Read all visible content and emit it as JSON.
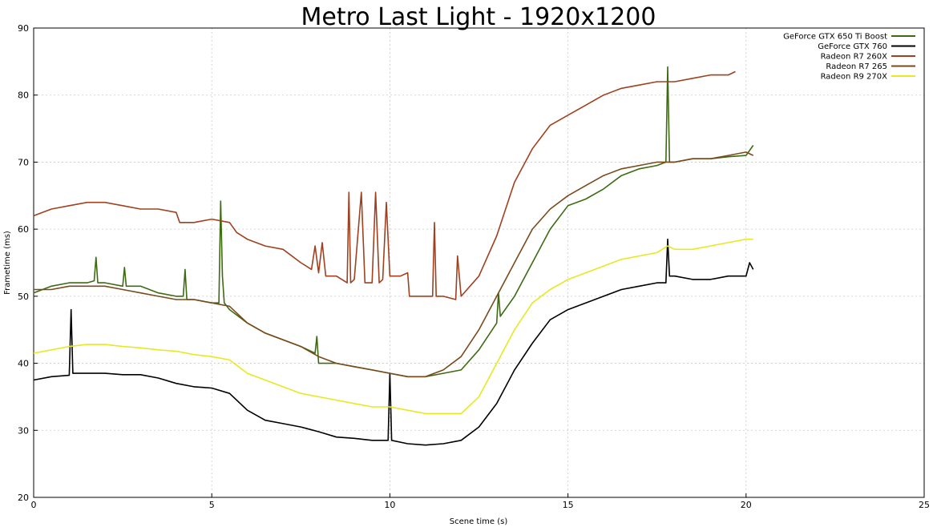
{
  "chart_data": {
    "type": "line",
    "title": "Metro Last Light - 1920x1200",
    "xlabel": "Scene time (s)",
    "ylabel": "Frametime (ms)",
    "xlim": [
      0,
      25
    ],
    "ylim": [
      20,
      90
    ],
    "xticks": [
      0,
      5,
      10,
      15,
      20,
      25
    ],
    "yticks": [
      20,
      30,
      40,
      50,
      60,
      70,
      80,
      90
    ],
    "grid": true,
    "legend_position": "top-right",
    "series": [
      {
        "name": "GeForce GTX 650 Ti Boost",
        "color": "#3d6b12",
        "points": [
          [
            0,
            50.5
          ],
          [
            0.5,
            51.5
          ],
          [
            1,
            52
          ],
          [
            1.5,
            52
          ],
          [
            1.7,
            52.3
          ],
          [
            1.75,
            55.8
          ],
          [
            1.8,
            52
          ],
          [
            2,
            52
          ],
          [
            2.5,
            51.5
          ],
          [
            2.55,
            54.3
          ],
          [
            2.6,
            51.5
          ],
          [
            3,
            51.5
          ],
          [
            3.5,
            50.5
          ],
          [
            4,
            50
          ],
          [
            4.2,
            50
          ],
          [
            4.25,
            54
          ],
          [
            4.3,
            49.5
          ],
          [
            4.5,
            49.5
          ],
          [
            5,
            49
          ],
          [
            5.2,
            49
          ],
          [
            5.25,
            64.2
          ],
          [
            5.3,
            53
          ],
          [
            5.35,
            49
          ],
          [
            5.5,
            48
          ],
          [
            6,
            46
          ],
          [
            6.5,
            44.5
          ],
          [
            7,
            43.5
          ],
          [
            7.5,
            42.5
          ],
          [
            7.9,
            41.5
          ],
          [
            7.95,
            44
          ],
          [
            8,
            40
          ],
          [
            8.5,
            40
          ],
          [
            9,
            39.5
          ],
          [
            9.5,
            39
          ],
          [
            10,
            38.5
          ],
          [
            10.5,
            38
          ],
          [
            11,
            38
          ],
          [
            11.5,
            38.5
          ],
          [
            12,
            39
          ],
          [
            12.5,
            42
          ],
          [
            13,
            46
          ],
          [
            13.05,
            50.5
          ],
          [
            13.1,
            47
          ],
          [
            13.5,
            50
          ],
          [
            14,
            55
          ],
          [
            14.5,
            60
          ],
          [
            15,
            63.5
          ],
          [
            15.5,
            64.5
          ],
          [
            16,
            66
          ],
          [
            16.5,
            68
          ],
          [
            17,
            69
          ],
          [
            17.5,
            69.5
          ],
          [
            17.75,
            70
          ],
          [
            17.8,
            84.2
          ],
          [
            17.85,
            70
          ],
          [
            18,
            70
          ],
          [
            18.5,
            70.5
          ],
          [
            19,
            70.5
          ],
          [
            19.5,
            70.8
          ],
          [
            20,
            71
          ],
          [
            20.2,
            72.5
          ]
        ]
      },
      {
        "name": "GeForce GTX 760",
        "color": "#000000",
        "points": [
          [
            0,
            37.5
          ],
          [
            0.5,
            38
          ],
          [
            1,
            38.2
          ],
          [
            1.05,
            48
          ],
          [
            1.1,
            38.5
          ],
          [
            1.5,
            38.5
          ],
          [
            2,
            38.5
          ],
          [
            2.5,
            38.3
          ],
          [
            3,
            38.3
          ],
          [
            3.5,
            37.8
          ],
          [
            4,
            37
          ],
          [
            4.5,
            36.5
          ],
          [
            5,
            36.3
          ],
          [
            5.5,
            35.5
          ],
          [
            6,
            33
          ],
          [
            6.5,
            31.5
          ],
          [
            7,
            31
          ],
          [
            7.5,
            30.5
          ],
          [
            8,
            29.8
          ],
          [
            8.5,
            29
          ],
          [
            9,
            28.8
          ],
          [
            9.5,
            28.5
          ],
          [
            9.95,
            28.5
          ],
          [
            10,
            38.5
          ],
          [
            10.05,
            28.5
          ],
          [
            10.5,
            28
          ],
          [
            11,
            27.8
          ],
          [
            11.5,
            28
          ],
          [
            12,
            28.5
          ],
          [
            12.5,
            30.5
          ],
          [
            13,
            34
          ],
          [
            13.5,
            39
          ],
          [
            14,
            43
          ],
          [
            14.5,
            46.5
          ],
          [
            15,
            48
          ],
          [
            15.5,
            49
          ],
          [
            16,
            50
          ],
          [
            16.5,
            51
          ],
          [
            17,
            51.5
          ],
          [
            17.5,
            52
          ],
          [
            17.75,
            52
          ],
          [
            17.8,
            58.5
          ],
          [
            17.85,
            53
          ],
          [
            18,
            53
          ],
          [
            18.5,
            52.5
          ],
          [
            19,
            52.5
          ],
          [
            19.5,
            53
          ],
          [
            20,
            53
          ],
          [
            20.1,
            55
          ],
          [
            20.2,
            54
          ]
        ]
      },
      {
        "name": "Radeon R7 260X",
        "color": "#a0401f",
        "points": [
          [
            0,
            62
          ],
          [
            0.5,
            63
          ],
          [
            1,
            63.5
          ],
          [
            1.5,
            64
          ],
          [
            2,
            64
          ],
          [
            2.5,
            63.5
          ],
          [
            3,
            63
          ],
          [
            3.5,
            63
          ],
          [
            4,
            62.5
          ],
          [
            4.1,
            61
          ],
          [
            4.5,
            61
          ],
          [
            5,
            61.5
          ],
          [
            5.5,
            61
          ],
          [
            5.7,
            59.5
          ],
          [
            6,
            58.5
          ],
          [
            6.5,
            57.5
          ],
          [
            7,
            57
          ],
          [
            7.5,
            55
          ],
          [
            7.8,
            54
          ],
          [
            7.9,
            57.5
          ],
          [
            8,
            53.5
          ],
          [
            8.1,
            58
          ],
          [
            8.2,
            53
          ],
          [
            8.5,
            53
          ],
          [
            8.8,
            52
          ],
          [
            8.85,
            65.5
          ],
          [
            8.9,
            52
          ],
          [
            9,
            52.5
          ],
          [
            9.2,
            65.5
          ],
          [
            9.3,
            52
          ],
          [
            9.5,
            52
          ],
          [
            9.6,
            65.5
          ],
          [
            9.7,
            52
          ],
          [
            9.8,
            52.5
          ],
          [
            9.9,
            64
          ],
          [
            10,
            53
          ],
          [
            10.3,
            53
          ],
          [
            10.5,
            53.5
          ],
          [
            10.55,
            50
          ],
          [
            11,
            50
          ],
          [
            11.2,
            50
          ],
          [
            11.25,
            61
          ],
          [
            11.3,
            50
          ],
          [
            11.5,
            50
          ],
          [
            11.85,
            49.5
          ],
          [
            11.9,
            56
          ],
          [
            12,
            50
          ],
          [
            12.5,
            53
          ],
          [
            13,
            59
          ],
          [
            13.5,
            67
          ],
          [
            14,
            72
          ],
          [
            14.5,
            75.5
          ],
          [
            15,
            77
          ],
          [
            15.5,
            78.5
          ],
          [
            16,
            80
          ],
          [
            16.5,
            81
          ],
          [
            17,
            81.5
          ],
          [
            17.5,
            82
          ],
          [
            18,
            82
          ],
          [
            18.5,
            82.5
          ],
          [
            19,
            83
          ],
          [
            19.5,
            83
          ],
          [
            19.7,
            83.5
          ]
        ]
      },
      {
        "name": "Radeon R7 265",
        "color": "#7a4a1c",
        "points": [
          [
            0,
            51
          ],
          [
            0.5,
            51
          ],
          [
            1,
            51.5
          ],
          [
            1.5,
            51.5
          ],
          [
            2,
            51.5
          ],
          [
            2.5,
            51
          ],
          [
            3,
            50.5
          ],
          [
            3.5,
            50
          ],
          [
            4,
            49.5
          ],
          [
            4.5,
            49.5
          ],
          [
            5,
            49
          ],
          [
            5.5,
            48.5
          ],
          [
            6,
            46
          ],
          [
            6.5,
            44.5
          ],
          [
            7,
            43.5
          ],
          [
            7.5,
            42.5
          ],
          [
            8,
            41
          ],
          [
            8.5,
            40
          ],
          [
            9,
            39.5
          ],
          [
            9.5,
            39
          ],
          [
            10,
            38.5
          ],
          [
            10.5,
            38
          ],
          [
            11,
            38
          ],
          [
            11.5,
            39
          ],
          [
            12,
            41
          ],
          [
            12.5,
            45
          ],
          [
            13,
            50
          ],
          [
            13.5,
            55
          ],
          [
            14,
            60
          ],
          [
            14.5,
            63
          ],
          [
            15,
            65
          ],
          [
            15.5,
            66.5
          ],
          [
            16,
            68
          ],
          [
            16.5,
            69
          ],
          [
            17,
            69.5
          ],
          [
            17.5,
            70
          ],
          [
            18,
            70
          ],
          [
            18.5,
            70.5
          ],
          [
            19,
            70.5
          ],
          [
            19.5,
            71
          ],
          [
            20,
            71.5
          ],
          [
            20.2,
            71
          ]
        ]
      },
      {
        "name": "Radeon R9 270X",
        "color": "#e8e820",
        "points": [
          [
            0,
            41.5
          ],
          [
            0.5,
            42
          ],
          [
            1,
            42.5
          ],
          [
            1.5,
            42.8
          ],
          [
            2,
            42.8
          ],
          [
            2.5,
            42.5
          ],
          [
            3,
            42.3
          ],
          [
            3.5,
            42
          ],
          [
            4,
            41.8
          ],
          [
            4.5,
            41.3
          ],
          [
            5,
            41
          ],
          [
            5.5,
            40.5
          ],
          [
            6,
            38.5
          ],
          [
            6.5,
            37.5
          ],
          [
            7,
            36.5
          ],
          [
            7.5,
            35.5
          ],
          [
            8,
            35
          ],
          [
            8.5,
            34.5
          ],
          [
            9,
            34
          ],
          [
            9.5,
            33.5
          ],
          [
            10,
            33.5
          ],
          [
            10.5,
            33
          ],
          [
            11,
            32.5
          ],
          [
            11.5,
            32.5
          ],
          [
            12,
            32.5
          ],
          [
            12.5,
            35
          ],
          [
            13,
            40
          ],
          [
            13.5,
            45
          ],
          [
            14,
            49
          ],
          [
            14.5,
            51
          ],
          [
            15,
            52.5
          ],
          [
            15.5,
            53.5
          ],
          [
            16,
            54.5
          ],
          [
            16.5,
            55.5
          ],
          [
            17,
            56
          ],
          [
            17.5,
            56.5
          ],
          [
            17.8,
            57.5
          ],
          [
            18,
            57
          ],
          [
            18.5,
            57
          ],
          [
            19,
            57.5
          ],
          [
            19.5,
            58
          ],
          [
            20,
            58.5
          ],
          [
            20.2,
            58.5
          ]
        ]
      }
    ]
  }
}
